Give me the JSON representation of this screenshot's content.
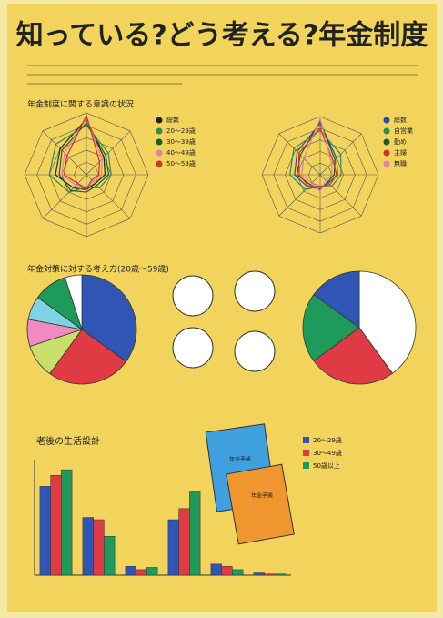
{
  "title": "知っている?どう考える?年金制度",
  "radars": [
    {
      "heading": "年金制度に関する意識の状況",
      "ylim": [
        0,
        50
      ],
      "rticks": [
        10,
        20,
        30,
        40,
        50
      ],
      "series": [
        {
          "name": "総数",
          "color": "#222222",
          "values": [
            45,
            20,
            15,
            10,
            12,
            15,
            25,
            30
          ]
        },
        {
          "name": "20～29歳",
          "color": "#2e8b57",
          "values": [
            40,
            25,
            20,
            15,
            10,
            20,
            30,
            35
          ]
        },
        {
          "name": "30～39歳",
          "color": "#1b5e20",
          "values": [
            42,
            22,
            18,
            12,
            14,
            18,
            22,
            28
          ]
        },
        {
          "name": "40～49歳",
          "color": "#e87ab0",
          "values": [
            46,
            18,
            12,
            8,
            10,
            12,
            20,
            25
          ]
        },
        {
          "name": "50～59歳",
          "color": "#d32f2f",
          "values": [
            48,
            15,
            10,
            6,
            12,
            10,
            18,
            22
          ]
        }
      ]
    },
    {
      "ylim": [
        0,
        50
      ],
      "rticks": [
        10,
        20,
        30,
        40,
        50
      ],
      "series": [
        {
          "name": "総数",
          "color": "#1f4fa8",
          "values": [
            44,
            20,
            15,
            10,
            12,
            15,
            22,
            28
          ]
        },
        {
          "name": "自営業",
          "color": "#2e8b57",
          "values": [
            38,
            25,
            18,
            14,
            10,
            18,
            26,
            32
          ]
        },
        {
          "name": "勤め",
          "color": "#1b5e20",
          "values": [
            46,
            18,
            12,
            9,
            13,
            12,
            20,
            24
          ]
        },
        {
          "name": "主婦",
          "color": "#d32f2f",
          "values": [
            40,
            16,
            14,
            12,
            10,
            14,
            18,
            26
          ]
        },
        {
          "name": "無職",
          "color": "#e87ab0",
          "values": [
            48,
            14,
            10,
            7,
            14,
            10,
            16,
            20
          ]
        }
      ]
    }
  ],
  "pies_heading": "年金対策に対する考え方(20歳～59歳)",
  "pies": [
    {
      "values": [
        35,
        25,
        10,
        8,
        7,
        10,
        5
      ],
      "colors": [
        "#2f55b5",
        "#e03a45",
        "#c8e06a",
        "#f08ac0",
        "#7fd3e6",
        "#1e9a5a",
        "#ffffff"
      ]
    },
    {
      "values": [
        40,
        25,
        20,
        15
      ],
      "colors": [
        "#ffffff",
        "#e03a45",
        "#1e9a5a",
        "#2f55b5"
      ]
    }
  ],
  "chart_data": {
    "type": "bar",
    "title": "老後の生活設計",
    "categories": [
      null,
      null,
      null,
      null,
      null,
      null
    ],
    "series": [
      {
        "name": "20～29歳",
        "color": "#2f55b5",
        "values": [
          80,
          52,
          8,
          50,
          10,
          2
        ]
      },
      {
        "name": "30～49歳",
        "color": "#e03a45",
        "values": [
          90,
          50,
          5,
          60,
          8,
          1
        ]
      },
      {
        "name": "50歳以上",
        "color": "#1e9a5a",
        "values": [
          95,
          35,
          7,
          75,
          5,
          1
        ]
      }
    ],
    "ylim": [
      0,
      100
    ]
  },
  "notebook": "年金手帳"
}
